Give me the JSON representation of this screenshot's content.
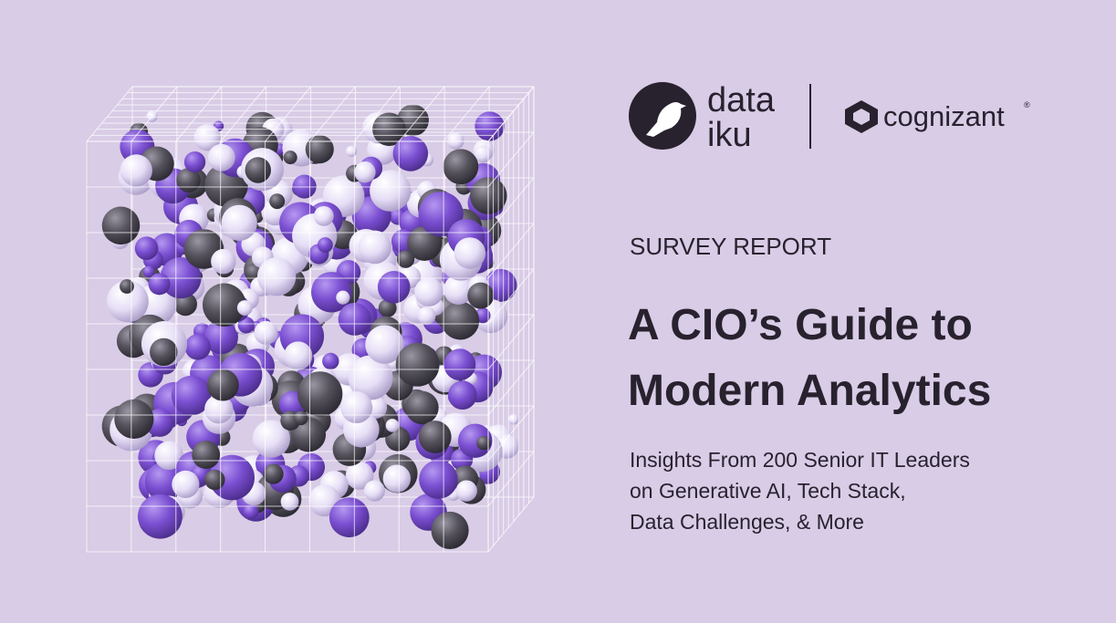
{
  "logos": {
    "dataiku": {
      "line1": "data",
      "line2": "iku"
    },
    "cognizant": {
      "name": "cognizant",
      "mark": "®"
    }
  },
  "eyebrow": "SURVEY REPORT",
  "title": [
    "A CIO’s Guide to",
    "Modern Analytics"
  ],
  "subtitle": [
    "Insights From 200 Senior IT Leaders",
    "on Generative AI, Tech Stack,",
    "Data Challenges, & More"
  ]
}
